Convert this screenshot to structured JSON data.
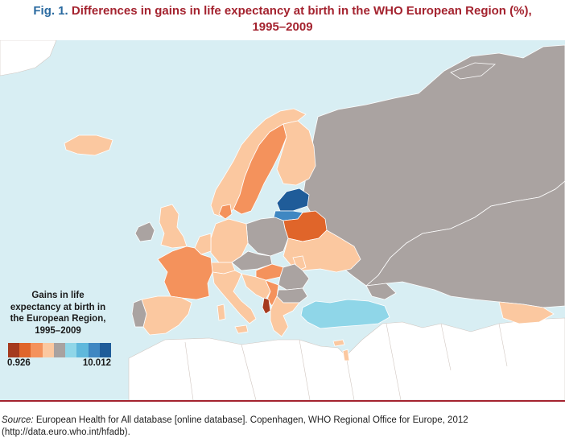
{
  "figure": {
    "label": "Fig. 1.",
    "title_line1": "Differences in gains in life expectancy at birth in the WHO European Region (%),",
    "title_line2": "1995–2009"
  },
  "legend": {
    "title_line1": "Gains in life",
    "title_line2": "expectancy at birth in",
    "title_line3": "the European Region,",
    "title_line4": "1995–2009",
    "min_label": "0.926",
    "max_label": "10.012",
    "swatches": [
      "#a53a1e",
      "#e0652a",
      "#f4925c",
      "#fbc8a0",
      "#a8a2a0",
      "#8fd6e8",
      "#5fb8dc",
      "#3f87c2",
      "#1f5c99"
    ]
  },
  "colors": {
    "sea": "#d8eef3",
    "land_outside": "#ffffff",
    "no_data": "#aaa3a1",
    "accent_red": "#a4232f",
    "accent_blue": "#2a6aa0"
  },
  "source": {
    "label": "Source:",
    "text": " European Health for All database [online database]. Copenhagen, WHO Regional Office for Europe, 2012",
    "line2": "(http://data.euro.who.int/hfadb)."
  }
}
